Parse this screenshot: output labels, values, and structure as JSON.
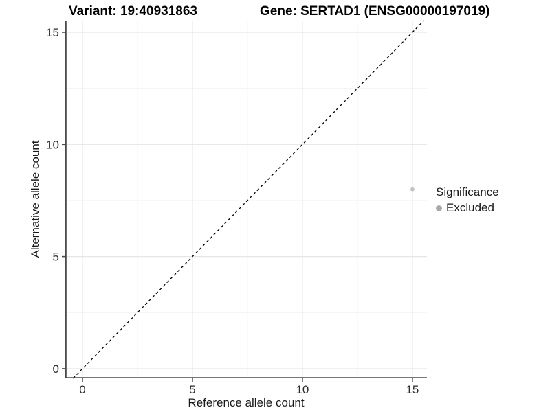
{
  "chart_data": {
    "type": "scatter",
    "title_left": "Variant: 19:40931863",
    "title_right": "Gene: SERTAD1 (ENSG00000197019)",
    "xlabel": "Reference allele count",
    "ylabel": "Alternative allele count",
    "xlim": [
      -0.78,
      15.66
    ],
    "ylim": [
      -0.43,
      15.52
    ],
    "x_major_ticks": [
      0,
      5,
      10,
      15
    ],
    "y_major_ticks": [
      0,
      5,
      10,
      15
    ],
    "x_minor_ticks": [
      2.5,
      7.5,
      12.5
    ],
    "y_minor_ticks": [
      2.5,
      7.5,
      12.5
    ],
    "grid": "on",
    "identity_line": {
      "style": "dashed",
      "slope": 1,
      "intercept": 0,
      "color": "#000000"
    },
    "points": [
      {
        "x": 15,
        "y": 8,
        "significance": "Excluded"
      }
    ],
    "legend": {
      "title": "Significance",
      "position": "right",
      "entries": [
        {
          "label": "Excluded",
          "color": "#a9a9a9"
        }
      ]
    },
    "colors": {
      "point": "#c3c3c3",
      "legend_dot": "#a9a9a9",
      "grid_major": "#e6e6e6",
      "grid_minor": "#f2f2f2",
      "axis_line": "#4a4a4a",
      "tick_label": "#2b2b2b"
    }
  }
}
